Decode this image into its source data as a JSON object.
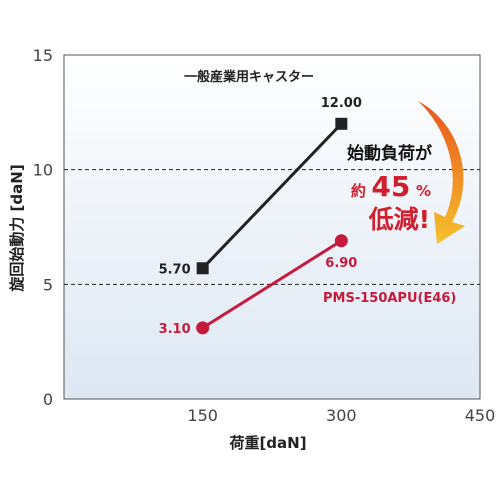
{
  "chart_data": {
    "type": "line",
    "xlabel": "荷重[daN]",
    "ylabel": "旋回始動力 [daN]",
    "xlim": [
      0,
      450
    ],
    "ylim": [
      0,
      15
    ],
    "x_ticks": [
      "150",
      "300",
      "450"
    ],
    "y_ticks": [
      "0",
      "5",
      "10",
      "15"
    ],
    "grid": {
      "y_dashed_at": [
        5,
        10
      ]
    },
    "series": [
      {
        "name": "一般産業用キャスター",
        "color": "#222222",
        "marker": "square",
        "x": [
          150,
          300
        ],
        "y": [
          5.7,
          12.0
        ],
        "labels": [
          "5.70",
          "12.00"
        ]
      },
      {
        "name": "PMS-150APU(E46)",
        "color": "#c41b3c",
        "marker": "circle",
        "x": [
          150,
          300
        ],
        "y": [
          3.1,
          6.9
        ],
        "labels": [
          "3.10",
          "6.90"
        ]
      }
    ],
    "annotation": {
      "line1": "始動負荷が",
      "line2_prefix": "約",
      "line2_value": "45",
      "line2_unit": "%",
      "line3": "低減!",
      "arrow_colors": [
        "#e8541e",
        "#f6c12b"
      ]
    }
  }
}
